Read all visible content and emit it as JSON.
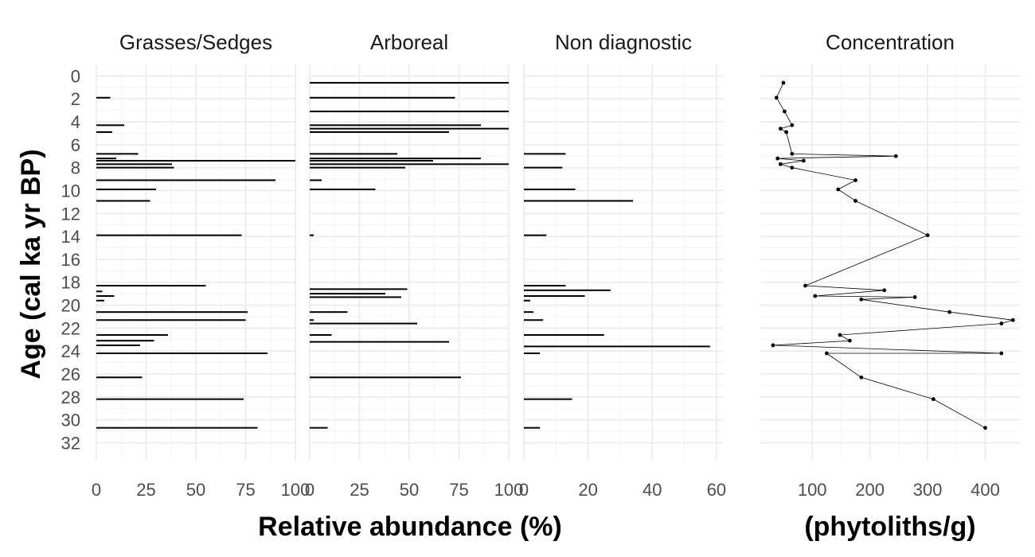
{
  "ylabel": "Age (cal ka yr BP)",
  "xlabel_left": "Relative abundance (%)",
  "xlabel_right": "(phytoliths/g)",
  "y_ticks": [
    0,
    2,
    4,
    6,
    8,
    10,
    12,
    14,
    16,
    18,
    20,
    22,
    24,
    26,
    28,
    30,
    32
  ],
  "chart_data": [
    {
      "type": "bar",
      "orientation": "horizontal",
      "title": "Grasses/Sedges",
      "xlim": [
        0,
        100
      ],
      "x_ticks": [
        0,
        25,
        50,
        75,
        100
      ],
      "ylim": [
        33.5,
        -1
      ],
      "data": [
        {
          "age": 1.9,
          "value": 7
        },
        {
          "age": 4.3,
          "value": 14
        },
        {
          "age": 4.9,
          "value": 8
        },
        {
          "age": 6.8,
          "value": 21
        },
        {
          "age": 7.2,
          "value": 10
        },
        {
          "age": 7.4,
          "value": 100
        },
        {
          "age": 7.7,
          "value": 38
        },
        {
          "age": 8.0,
          "value": 39
        },
        {
          "age": 9.1,
          "value": 90
        },
        {
          "age": 9.9,
          "value": 30
        },
        {
          "age": 10.9,
          "value": 27
        },
        {
          "age": 13.9,
          "value": 73
        },
        {
          "age": 18.3,
          "value": 55
        },
        {
          "age": 18.8,
          "value": 3
        },
        {
          "age": 19.2,
          "value": 9
        },
        {
          "age": 19.6,
          "value": 4
        },
        {
          "age": 20.6,
          "value": 76
        },
        {
          "age": 21.3,
          "value": 75
        },
        {
          "age": 22.6,
          "value": 36
        },
        {
          "age": 23.1,
          "value": 29
        },
        {
          "age": 23.5,
          "value": 22
        },
        {
          "age": 24.2,
          "value": 86
        },
        {
          "age": 26.3,
          "value": 23
        },
        {
          "age": 28.2,
          "value": 74
        },
        {
          "age": 30.7,
          "value": 81
        }
      ]
    },
    {
      "type": "bar",
      "orientation": "horizontal",
      "title": "Arboreal",
      "xlim": [
        0,
        100
      ],
      "x_ticks": [
        0,
        25,
        50,
        75,
        100
      ],
      "ylim": [
        33.5,
        -1
      ],
      "data": [
        {
          "age": 0.6,
          "value": 100
        },
        {
          "age": 1.9,
          "value": 73
        },
        {
          "age": 3.1,
          "value": 100
        },
        {
          "age": 4.3,
          "value": 86
        },
        {
          "age": 4.6,
          "value": 100
        },
        {
          "age": 4.9,
          "value": 70
        },
        {
          "age": 6.8,
          "value": 44
        },
        {
          "age": 7.2,
          "value": 86
        },
        {
          "age": 7.4,
          "value": 62
        },
        {
          "age": 7.7,
          "value": 100
        },
        {
          "age": 8.0,
          "value": 48
        },
        {
          "age": 9.1,
          "value": 6
        },
        {
          "age": 9.9,
          "value": 33
        },
        {
          "age": 13.9,
          "value": 2
        },
        {
          "age": 18.6,
          "value": 49
        },
        {
          "age": 19.0,
          "value": 38
        },
        {
          "age": 19.3,
          "value": 46
        },
        {
          "age": 20.6,
          "value": 19
        },
        {
          "age": 21.3,
          "value": 2
        },
        {
          "age": 21.6,
          "value": 54
        },
        {
          "age": 22.6,
          "value": 11
        },
        {
          "age": 23.2,
          "value": 70
        },
        {
          "age": 26.3,
          "value": 76
        },
        {
          "age": 30.7,
          "value": 9
        }
      ]
    },
    {
      "type": "bar",
      "orientation": "horizontal",
      "title": "Non diagnostic",
      "xlim": [
        0,
        62
      ],
      "x_ticks": [
        0,
        20,
        40,
        60
      ],
      "ylim": [
        33.5,
        -1
      ],
      "data": [
        {
          "age": 6.8,
          "value": 13
        },
        {
          "age": 8.0,
          "value": 12
        },
        {
          "age": 9.9,
          "value": 16
        },
        {
          "age": 10.9,
          "value": 34
        },
        {
          "age": 13.9,
          "value": 7
        },
        {
          "age": 18.3,
          "value": 13
        },
        {
          "age": 18.7,
          "value": 27
        },
        {
          "age": 19.2,
          "value": 19
        },
        {
          "age": 19.6,
          "value": 2
        },
        {
          "age": 20.6,
          "value": 3
        },
        {
          "age": 21.3,
          "value": 6
        },
        {
          "age": 22.6,
          "value": 25
        },
        {
          "age": 23.6,
          "value": 58
        },
        {
          "age": 24.2,
          "value": 5
        },
        {
          "age": 28.2,
          "value": 15
        },
        {
          "age": 30.7,
          "value": 5
        }
      ]
    },
    {
      "type": "line",
      "title": "Concentration",
      "xlim": [
        10,
        460
      ],
      "x_ticks": [
        100,
        200,
        300,
        400
      ],
      "ylim": [
        33.5,
        -1
      ],
      "markers": true,
      "data": [
        {
          "age": 0.6,
          "value": 50
        },
        {
          "age": 1.9,
          "value": 38
        },
        {
          "age": 3.1,
          "value": 52
        },
        {
          "age": 4.3,
          "value": 65
        },
        {
          "age": 4.6,
          "value": 45
        },
        {
          "age": 4.9,
          "value": 55
        },
        {
          "age": 6.8,
          "value": 65
        },
        {
          "age": 7.0,
          "value": 245
        },
        {
          "age": 7.2,
          "value": 40
        },
        {
          "age": 7.4,
          "value": 85
        },
        {
          "age": 7.7,
          "value": 45
        },
        {
          "age": 8.0,
          "value": 65
        },
        {
          "age": 9.1,
          "value": 175
        },
        {
          "age": 9.9,
          "value": 145
        },
        {
          "age": 10.9,
          "value": 175
        },
        {
          "age": 13.9,
          "value": 300
        },
        {
          "age": 18.3,
          "value": 88
        },
        {
          "age": 18.7,
          "value": 225
        },
        {
          "age": 19.2,
          "value": 105
        },
        {
          "age": 19.3,
          "value": 278
        },
        {
          "age": 19.5,
          "value": 185
        },
        {
          "age": 20.6,
          "value": 338
        },
        {
          "age": 21.3,
          "value": 448
        },
        {
          "age": 21.6,
          "value": 428
        },
        {
          "age": 22.6,
          "value": 148
        },
        {
          "age": 23.1,
          "value": 165
        },
        {
          "age": 23.5,
          "value": 32
        },
        {
          "age": 24.2,
          "value": 428
        },
        {
          "age": 24.2,
          "value": 125
        },
        {
          "age": 26.3,
          "value": 185
        },
        {
          "age": 28.2,
          "value": 310
        },
        {
          "age": 30.7,
          "value": 400
        }
      ]
    }
  ]
}
